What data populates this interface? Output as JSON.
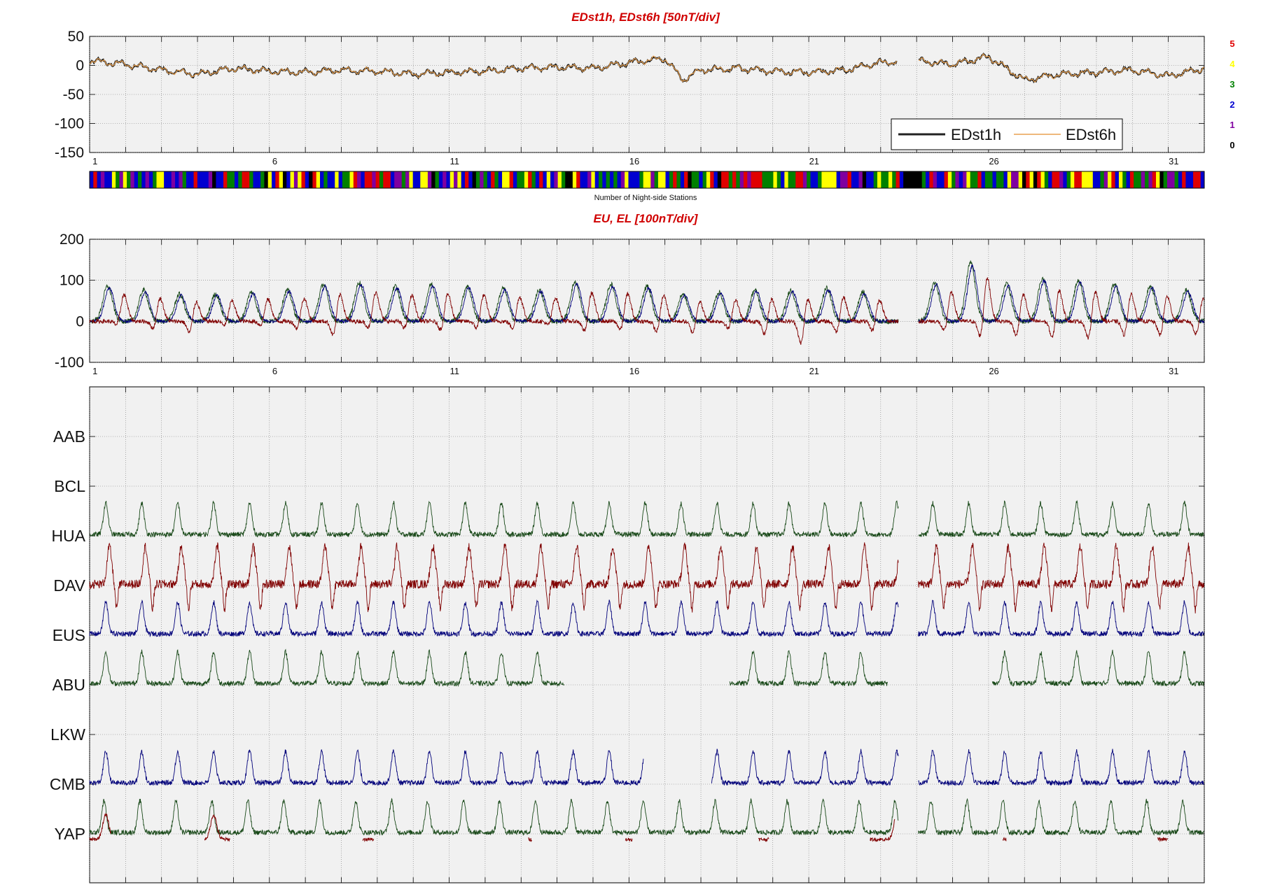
{
  "titles": {
    "dst": "EDst1h, EDst6h [50nT/div]",
    "eu": "EU, EL   [100nT/div]",
    "strip_caption": "Number of Night-side Stations"
  },
  "day_ticks": [
    "1",
    "6",
    "11",
    "16",
    "21",
    "26",
    "31"
  ],
  "station_count_legend": [
    {
      "label": "5",
      "color": "#e00000"
    },
    {
      "label": "4",
      "color": "#ffff00"
    },
    {
      "label": "3",
      "color": "#008000"
    },
    {
      "label": "2",
      "color": "#0000d0"
    },
    {
      "label": "1",
      "color": "#8000a0"
    },
    {
      "label": "0",
      "color": "#000000"
    }
  ],
  "colors": {
    "edst1h": "#222222",
    "edst6h": "#e8a050",
    "eu": "#1a4a1a",
    "el": "#800000",
    "blue": "#00007a",
    "panel_bg": "#f1f1f1"
  },
  "chart_data": [
    {
      "type": "line",
      "title": "EDst1h, EDst6h [50nT/div]",
      "xlim": [
        1,
        32
      ],
      "ylim": [
        -150,
        50
      ],
      "yticks": [
        "50",
        "0",
        "-50",
        "-100",
        "-150"
      ],
      "legend_position": "bottom-right",
      "grid": true,
      "series": [
        {
          "name": "EDst1h",
          "x": [
            1,
            2,
            3,
            4,
            5,
            6,
            7,
            8,
            9,
            10,
            11,
            12,
            13,
            14,
            15,
            16,
            17,
            17.5,
            18,
            19,
            20,
            21,
            22,
            23,
            24,
            25,
            26,
            27,
            28,
            29,
            30,
            31,
            32
          ],
          "y": [
            8,
            2,
            -8,
            -15,
            -5,
            -10,
            -12,
            -8,
            -10,
            -15,
            -12,
            -10,
            -5,
            -3,
            -5,
            5,
            12,
            -25,
            -8,
            -5,
            -10,
            -12,
            -8,
            5,
            8,
            2,
            15,
            -25,
            -15,
            -12,
            -8,
            -18,
            -5
          ]
        },
        {
          "name": "EDst6h",
          "x": [
            1,
            4,
            8,
            12,
            16,
            17,
            20,
            24,
            26,
            28,
            32
          ],
          "y": [
            6,
            -12,
            -9,
            -9,
            6,
            8,
            -8,
            6,
            12,
            -14,
            -7
          ]
        }
      ]
    },
    {
      "type": "line",
      "title": "EU, EL   [100nT/div]",
      "xlim": [
        1,
        32
      ],
      "ylim": [
        -100,
        200
      ],
      "yticks": [
        "200",
        "100",
        "0",
        "-100"
      ],
      "grid": true,
      "series": [
        {
          "name": "",
          "peak_day": [
            1.5,
            2.5,
            3.5,
            4.5,
            5.5,
            6.5,
            7.5,
            8.5,
            9.5,
            10.5,
            11.5,
            12.5,
            13.5,
            14.5,
            15.5,
            16.5,
            17.5,
            18.5,
            19.5,
            20.5,
            21.5,
            22.5,
            24.5,
            25.5,
            26.5,
            27.5,
            28.5,
            29.5,
            30.5,
            31.5
          ],
          "peak_value": [
            90,
            80,
            70,
            70,
            75,
            80,
            95,
            100,
            90,
            95,
            90,
            85,
            80,
            100,
            95,
            90,
            70,
            75,
            80,
            80,
            85,
            75,
            100,
            150,
            95,
            110,
            105,
            95,
            90,
            80
          ]
        },
        {
          "name": "",
          "peak_day": [
            1.5,
            2.5,
            3.5,
            4.5,
            5.5,
            6.5,
            7.5,
            8.5,
            9.5,
            10.5,
            11.5,
            12.5,
            13.5,
            14.5,
            15.5,
            16.5,
            17.5,
            18.5,
            19.5,
            20.5,
            21.5,
            22.5,
            24.5,
            25.5,
            26.5,
            27.5,
            28.5,
            29.5,
            30.5,
            31.5
          ],
          "peak_value": [
            -20,
            -30,
            -40,
            -20,
            -20,
            -30,
            -50,
            -30,
            -30,
            -35,
            -30,
            -30,
            -20,
            -40,
            -35,
            -40,
            -40,
            -30,
            -45,
            -70,
            -40,
            -35,
            -40,
            -60,
            -50,
            -60,
            -60,
            -50,
            -50,
            -45
          ]
        }
      ]
    },
    {
      "type": "line",
      "title": "",
      "xlim": [
        1,
        32
      ],
      "grid": true,
      "stations": [
        "AAB",
        "BCL",
        "HUA",
        "DAV",
        "EUS",
        "ABU",
        "LKW",
        "CMB",
        "YAP"
      ]
    }
  ]
}
